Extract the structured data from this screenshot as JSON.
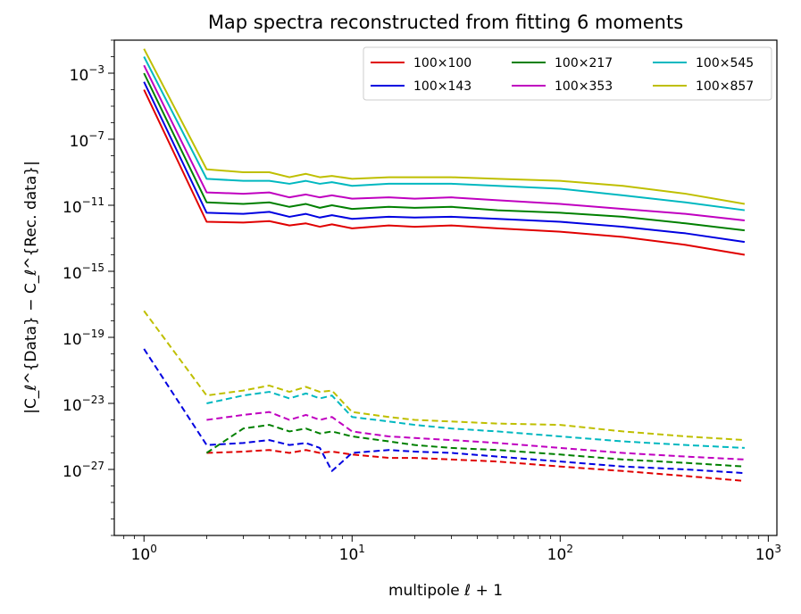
{
  "chart_data": {
    "type": "line",
    "title": "Map spectra reconstructed from fitting 6 moments",
    "xlabel": "multipole ℓ + 1",
    "ylabel": "|C_ℓ^{Data} − C_ℓ^{Rec. data}|",
    "xscale": "log",
    "yscale": "log",
    "xlim": [
      0.72,
      1100
    ],
    "ylim": [
      1e-31,
      0.1
    ],
    "grid": false,
    "legend_position": "top-right",
    "legend_columns": 3,
    "x_ticks": [
      {
        "base": "10",
        "exp": "0",
        "value": 1
      },
      {
        "base": "10",
        "exp": "1",
        "value": 10
      },
      {
        "base": "10",
        "exp": "2",
        "value": 100
      },
      {
        "base": "10",
        "exp": "3",
        "value": 1000
      }
    ],
    "y_ticks": [
      {
        "base": "10",
        "exp": "−27",
        "value": -27
      },
      {
        "base": "10",
        "exp": "−23",
        "value": -23
      },
      {
        "base": "10",
        "exp": "−19",
        "value": -19
      },
      {
        "base": "10",
        "exp": "−15",
        "value": -15
      },
      {
        "base": "10",
        "exp": "−11",
        "value": -11
      },
      {
        "base": "10",
        "exp": "−7",
        "value": -7
      },
      {
        "base": "10",
        "exp": "−3",
        "value": -3
      }
    ],
    "x": [
      1,
      2,
      3,
      4,
      5,
      6,
      7,
      8,
      10,
      15,
      20,
      30,
      50,
      100,
      200,
      400,
      770
    ],
    "series": [
      {
        "name": "100×100",
        "color": "#e00000",
        "solid": [
          0.0001,
          1e-12,
          9e-13,
          1.1e-12,
          6e-13,
          8e-13,
          5e-13,
          7e-13,
          4e-13,
          6e-13,
          5e-13,
          6e-13,
          4e-13,
          2.5e-13,
          1.2e-13,
          4e-14,
          1e-14
        ],
        "dashed": [
          null,
          1e-26,
          1.2e-26,
          1.5e-26,
          1e-26,
          1.5e-26,
          1e-26,
          1.2e-26,
          8e-27,
          5e-27,
          5e-27,
          4e-27,
          3e-27,
          1.5e-27,
          8e-28,
          4e-28,
          2e-28
        ]
      },
      {
        "name": "100×143",
        "color": "#0000e0",
        "solid": [
          0.0003,
          3.5e-12,
          3e-12,
          4e-12,
          2e-12,
          3e-12,
          1.8e-12,
          2.5e-12,
          1.5e-12,
          2e-12,
          1.8e-12,
          2e-12,
          1.5e-12,
          1e-12,
          5e-13,
          2e-13,
          6e-14
        ],
        "dashed": [
          2e-20,
          3e-26,
          4e-26,
          6e-26,
          3e-26,
          4e-26,
          2e-26,
          8e-28,
          1e-26,
          1.5e-26,
          1.2e-26,
          1e-26,
          6e-27,
          3e-27,
          1.5e-27,
          1e-27,
          6e-28
        ]
      },
      {
        "name": "100×217",
        "color": "#008000",
        "solid": [
          0.001,
          1.5e-11,
          1.2e-11,
          1.5e-11,
          8e-12,
          1.2e-11,
          7e-12,
          1e-11,
          6e-12,
          8e-12,
          7e-12,
          8e-12,
          5e-12,
          3.5e-12,
          2e-12,
          8e-13,
          3e-13
        ],
        "dashed": [
          null,
          1e-26,
          3e-25,
          5e-25,
          2e-25,
          3e-25,
          1.5e-25,
          2e-25,
          1e-25,
          5e-26,
          3e-26,
          2e-26,
          1.5e-26,
          8e-27,
          4e-27,
          2.5e-27,
          1.5e-27
        ]
      },
      {
        "name": "100×353",
        "color": "#c000c0",
        "solid": [
          0.003,
          6e-11,
          5e-11,
          6e-11,
          3e-11,
          4.5e-11,
          3e-11,
          4e-11,
          2.5e-11,
          3e-11,
          2.5e-11,
          3e-11,
          2e-11,
          1.2e-11,
          6e-12,
          3e-12,
          1.2e-12
        ],
        "dashed": [
          null,
          1e-24,
          2e-24,
          3e-24,
          1e-24,
          2e-24,
          1e-24,
          1.5e-24,
          2e-25,
          1e-25,
          8e-26,
          6e-26,
          4e-26,
          2e-26,
          1e-26,
          6e-27,
          4e-27
        ]
      },
      {
        "name": "100×545",
        "color": "#00b8c0",
        "solid": [
          0.01,
          4e-10,
          3e-10,
          3e-10,
          2e-10,
          3e-10,
          2e-10,
          2.5e-10,
          1.5e-10,
          2e-10,
          2e-10,
          2e-10,
          1.5e-10,
          1e-10,
          4e-11,
          1.5e-11,
          5e-12
        ],
        "dashed": [
          null,
          1e-23,
          3e-23,
          5e-23,
          2e-23,
          4e-23,
          2e-23,
          3e-23,
          1.5e-24,
          8e-25,
          5e-25,
          3e-25,
          2e-25,
          1e-25,
          5e-26,
          3e-26,
          2e-26
        ]
      },
      {
        "name": "100×857",
        "color": "#bfbf00",
        "solid": [
          0.03,
          1.5e-09,
          1e-09,
          1e-09,
          5e-10,
          8e-10,
          5e-10,
          6e-10,
          4e-10,
          5e-10,
          5e-10,
          5e-10,
          4e-10,
          3e-10,
          1.5e-10,
          5e-11,
          1.2e-11
        ],
        "dashed": [
          4e-18,
          3e-23,
          6e-23,
          1.2e-22,
          5e-23,
          1e-22,
          5e-23,
          6e-23,
          3e-24,
          1.5e-24,
          1e-24,
          8e-25,
          6e-25,
          5e-25,
          2e-25,
          1e-25,
          6e-26
        ]
      }
    ]
  }
}
